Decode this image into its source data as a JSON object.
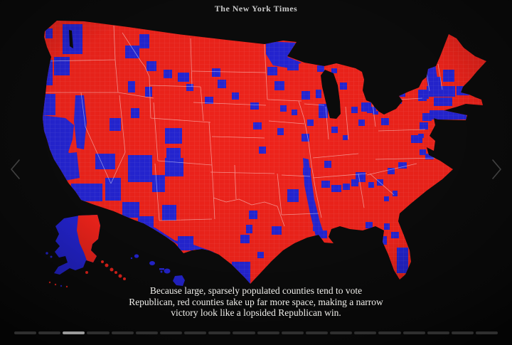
{
  "masthead": {
    "brand": "The New York Times"
  },
  "carousel": {
    "slide_count": 20,
    "active_slide": 3,
    "prev_icon": "chevron-left",
    "next_icon": "chevron-right",
    "nav_icon_color": "#4c4c4c",
    "segment_inactive_color": "#2f2f2f",
    "segment_active_color": "#9a9a9a"
  },
  "caption": {
    "line1": "Because large, sparsely populated counties tend to vote",
    "line2": "Republican, red counties take up far more space, making a narrow",
    "line3": "victory look like a lopsided Republican win."
  },
  "map": {
    "kind": "us-county-choropleth",
    "colors": {
      "republican": "#ee231b",
      "democrat": "#2424d2",
      "state_border": "rgba(255,255,255,0.5)",
      "county_border": "rgba(255,255,255,0.16)",
      "water": "#0b0b0b",
      "background": "#0b0b0b"
    }
  }
}
